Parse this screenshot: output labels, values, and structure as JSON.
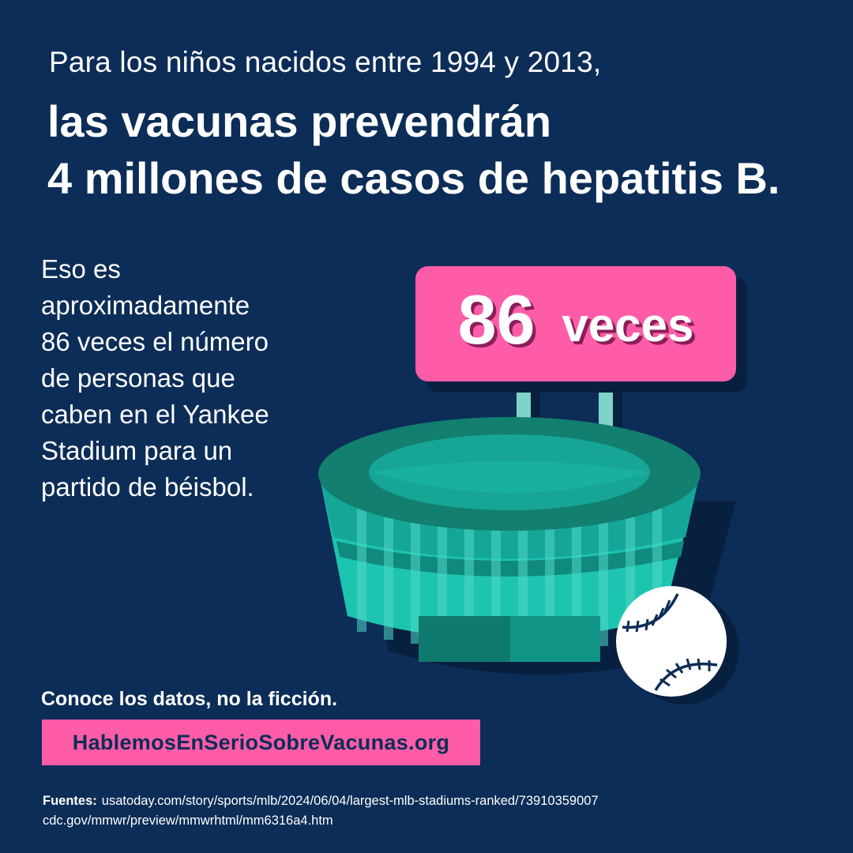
{
  "intro": "Para los niños nacidos entre 1994 y 2013,",
  "headline": {
    "line1": "las vacunas prevendrán",
    "line2": "4 millones de casos de hepatitis B."
  },
  "comparison": {
    "line1": "Eso es",
    "line2": "aproximadamente",
    "line3": "86 veces el número",
    "line4": "de personas que",
    "line5": "caben en el Yankee",
    "line6": "Stadium para un",
    "line7": "partido de béisbol."
  },
  "scoreboard": {
    "number": "86",
    "word": "veces"
  },
  "tagline": "Conoce los datos, no la ficción.",
  "website": "HablemosEnSerioSobreVacunas.org",
  "sources": {
    "label": "Fuentes:",
    "items": [
      "usatoday.com/story/sports/mlb/2024/06/04/largest-mlb-stadiums-ranked/73910359007",
      "cdc.gov/mmwr/preview/mmwrhtml/mm6316a4.htm"
    ]
  },
  "colors": {
    "background": "#0c2d57",
    "accent_pink": "#ff5ca8",
    "stadium_teal": "#1dc4b0",
    "stadium_dark": "#0e7a6d"
  },
  "illustration": {
    "icons": [
      "stadium-icon",
      "baseball-icon"
    ]
  }
}
